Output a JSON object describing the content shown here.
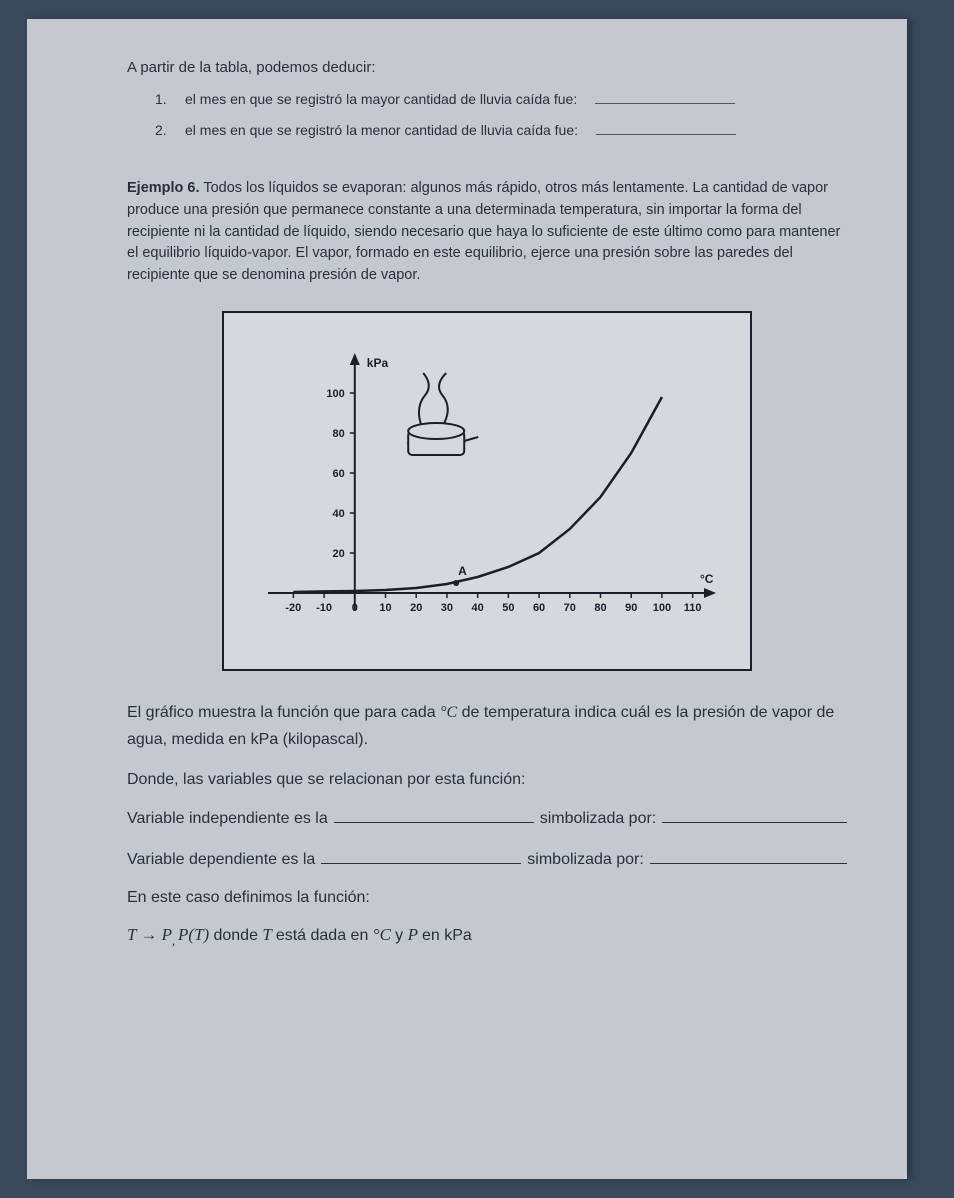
{
  "intro": "A partir de la tabla, podemos deducir:",
  "items": [
    {
      "num": "1.",
      "text": "el mes en que se registró la mayor cantidad de lluvia caída fue:"
    },
    {
      "num": "2.",
      "text": "el mes en que se registró la menor cantidad de lluvia caída fue:"
    }
  ],
  "ejemplo": {
    "label": "Ejemplo 6.",
    "body": "Todos los líquidos se evaporan: algunos más rápido, otros más lentamente. La cantidad de vapor produce una presión que permanece constante a una determinada temperatura, sin importar la forma del recipiente ni la cantidad de líquido, siendo necesario que haya lo suficiente de este último como para mantener el equilibrio líquido-vapor. El vapor, formado en este equilibrio, ejerce una presión sobre las paredes del recipiente que se denomina presión de vapor."
  },
  "chart": {
    "type": "line",
    "y_label": "kPa",
    "x_label": "°C",
    "point_label": "A",
    "y_ticks": [
      20,
      40,
      60,
      80,
      100
    ],
    "x_ticks": [
      -20,
      -10,
      0,
      10,
      20,
      30,
      40,
      50,
      60,
      70,
      80,
      90,
      100,
      110
    ],
    "xlim": [
      -25,
      115
    ],
    "ylim": [
      -10,
      115
    ],
    "curve_points": [
      [
        -20,
        0.5
      ],
      [
        -10,
        0.8
      ],
      [
        0,
        1
      ],
      [
        10,
        1.5
      ],
      [
        20,
        2.5
      ],
      [
        30,
        4.5
      ],
      [
        40,
        8
      ],
      [
        50,
        13
      ],
      [
        60,
        20
      ],
      [
        70,
        32
      ],
      [
        80,
        48
      ],
      [
        90,
        70
      ],
      [
        100,
        98
      ]
    ],
    "point_A": [
      33,
      5
    ],
    "colors": {
      "axis": "#1a1f2b",
      "curve": "#1a1f2b",
      "background": "#d6d8dd",
      "border": "#1a1f2b",
      "text": "#1a1f2b"
    },
    "stroke_width": 2,
    "tick_fontsize": 11,
    "label_fontsize": 12
  },
  "post": {
    "p1a": "El gráfico muestra la función que para cada ",
    "p1_sym": "°C",
    "p1b": " de temperatura indica cuál es la presión de vapor de agua, medida en kPa (kilopascal).",
    "p2": "Donde, las variables que se relacionan por esta función:",
    "var_ind_a": "Variable independiente  es  la",
    "simbol": "simbolizada por:",
    "var_dep_a": "Variable dependiente  es la",
    "def": "En este caso definimos la función:",
    "formula_a": "T → P",
    "formula_b": "P(T)",
    "formula_c": " donde ",
    "formula_d": "T",
    "formula_e": " está dada en ",
    "formula_f": "°C",
    "formula_g": " y ",
    "formula_h": "P",
    "formula_i": " en kPa"
  }
}
